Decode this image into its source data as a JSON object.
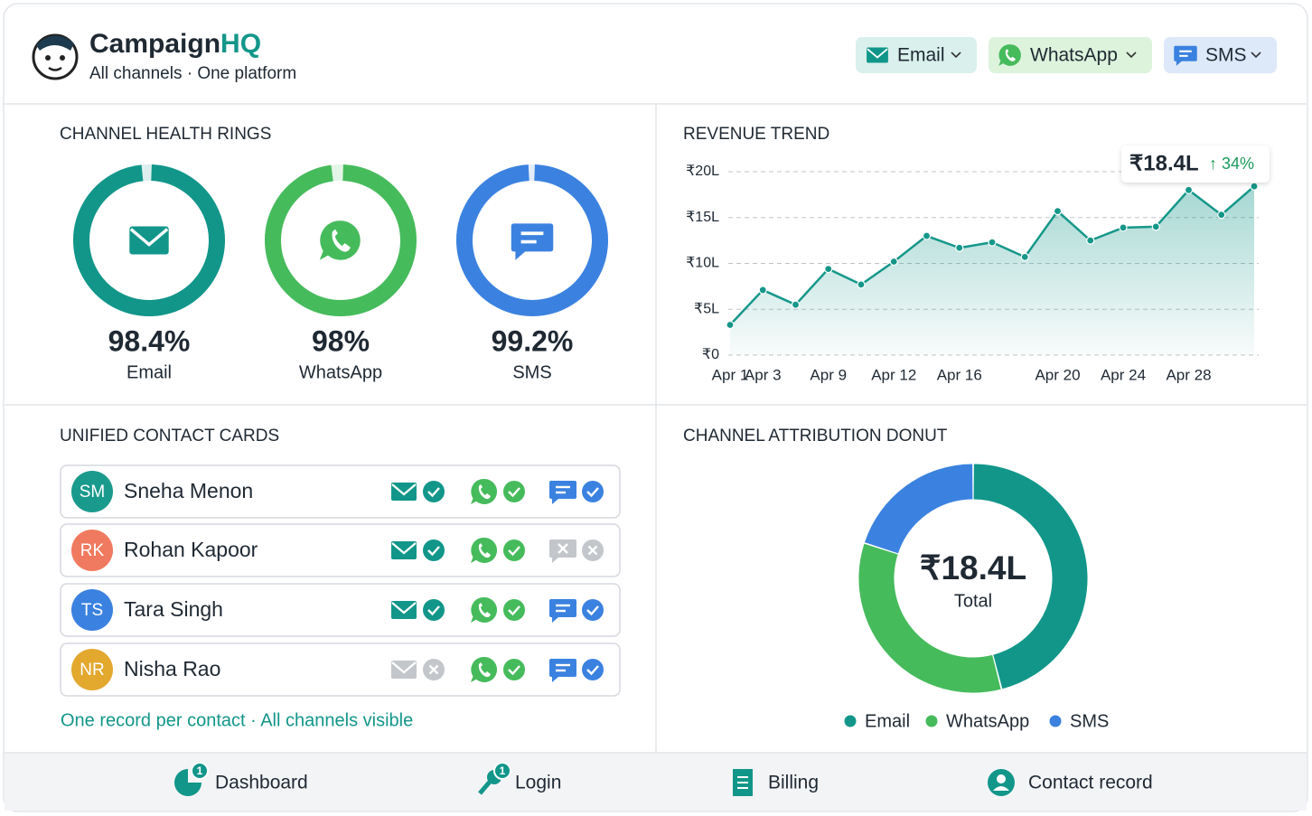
{
  "header": {
    "brand": "Campaign",
    "brand_accent": "HQ",
    "tagline": "All channels · One platform",
    "channels": [
      "Email",
      "WhatsApp",
      "SMS"
    ]
  },
  "chart_data": [
    {
      "type": "ring",
      "title": "CHANNEL HEALTH RINGS",
      "categories": [
        "Email",
        "WhatsApp",
        "SMS"
      ],
      "values": [
        98.4,
        98,
        99.2
      ],
      "value_labels": [
        "98.4%",
        "98%",
        "99.2%"
      ],
      "colors": [
        "#12968a",
        "#46bb5c",
        "#3b82e0"
      ],
      "ylim": [
        0,
        100
      ]
    },
    {
      "type": "line",
      "title": "REVENUE TREND",
      "categories": [
        "Apr 1",
        "Apr 3",
        null,
        "Apr 9",
        null,
        "Apr 12",
        null,
        "Apr 16",
        null,
        null,
        "Apr 20",
        null,
        "Apr 24",
        null,
        "Apr 28",
        null,
        null
      ],
      "values": [
        3.3,
        7.1,
        5.5,
        9.4,
        7.7,
        10.2,
        13.0,
        11.7,
        12.3,
        10.7,
        15.7,
        12.5,
        13.9,
        14.0,
        18.0,
        15.3,
        18.4
      ],
      "color": "#15978a",
      "ylim": [
        0,
        20
      ],
      "yticks": [
        {
          "value": 0,
          "label": "₹0"
        },
        {
          "value": 5,
          "label": "₹5L"
        },
        {
          "value": 10,
          "label": "₹10L"
        },
        {
          "value": 15,
          "label": "₹15L"
        },
        {
          "value": 20,
          "label": "₹20L"
        }
      ],
      "grid": true,
      "annotation": {
        "label": "₹18.4L",
        "change": "↑ 34%"
      }
    },
    {
      "type": "donut",
      "title": "CHANNEL ATTRIBUTION DONUT",
      "center_label": "₹18.4L",
      "center_sublabel": "Total",
      "categories": [
        "Email",
        "WhatsApp",
        "SMS"
      ],
      "values": [
        46,
        34,
        20
      ],
      "colors": [
        "#12968a",
        "#46bb5c",
        "#3b82e0"
      ]
    }
  ],
  "contacts": {
    "title": "UNIFIED CONTACT CARDS",
    "cards": [
      {
        "initials": "SM",
        "name": "Sneha Menon",
        "color": "#1a9a8c",
        "email": true,
        "whatsapp": true,
        "sms": true
      },
      {
        "initials": "RK",
        "name": "Rohan Kapoor",
        "color": "#f07a5f",
        "email": true,
        "whatsapp": true,
        "sms": false
      },
      {
        "initials": "TS",
        "name": "Tara Singh",
        "color": "#3b82e0",
        "email": true,
        "whatsapp": true,
        "sms": true
      },
      {
        "initials": "NR",
        "name": "Nisha Rao",
        "color": "#e3a82e",
        "email": false,
        "whatsapp": true,
        "sms": true
      }
    ],
    "footer": "One record per contact · All channels visible"
  },
  "nav": {
    "items": [
      {
        "label": "Dashboard",
        "badge": "1"
      },
      {
        "label": "Login",
        "badge": "1"
      },
      {
        "label": "Billing"
      },
      {
        "label": "Contact record"
      }
    ]
  }
}
